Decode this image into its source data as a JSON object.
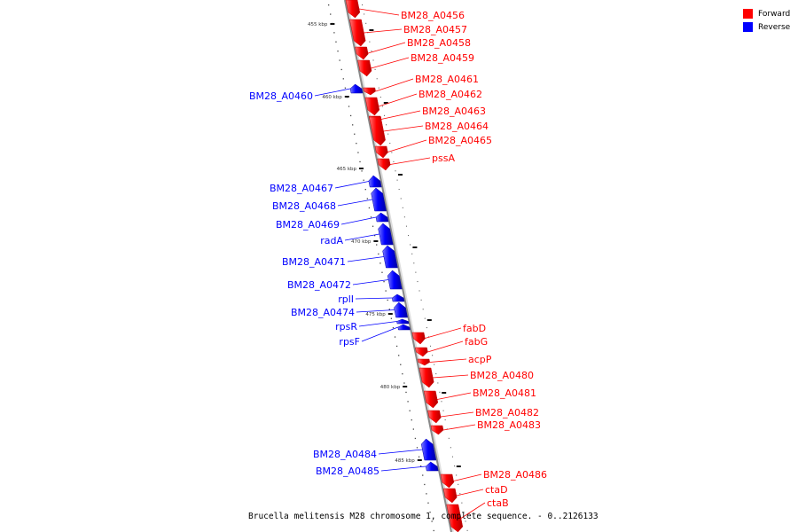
{
  "colors": {
    "forward": "#ff0000",
    "reverse": "#0000ff",
    "backbone": "#999999"
  },
  "legend": [
    {
      "label": "Forward",
      "color": "#ff0000"
    },
    {
      "label": "Reverse",
      "color": "#0000ff"
    }
  ],
  "caption": "Brucella melitensis M28 chromosome 1, complete sequence. - 0..2126133",
  "scale_ticks": [
    "455 kbp",
    "460 kbp",
    "465 kbp",
    "470 kbp",
    "475 kbp",
    "480 kbp",
    "485 kbp"
  ],
  "genes": [
    {
      "name": "BM28_A0456",
      "strand": "forward"
    },
    {
      "name": "BM28_A0457",
      "strand": "forward"
    },
    {
      "name": "BM28_A0458",
      "strand": "forward"
    },
    {
      "name": "BM28_A0459",
      "strand": "forward"
    },
    {
      "name": "BM28_A0460",
      "strand": "reverse"
    },
    {
      "name": "BM28_A0461",
      "strand": "forward"
    },
    {
      "name": "BM28_A0462",
      "strand": "forward"
    },
    {
      "name": "BM28_A0463",
      "strand": "forward"
    },
    {
      "name": "BM28_A0464",
      "strand": "forward"
    },
    {
      "name": "BM28_A0465",
      "strand": "forward"
    },
    {
      "name": "pssA",
      "strand": "forward"
    },
    {
      "name": "BM28_A0467",
      "strand": "reverse"
    },
    {
      "name": "BM28_A0468",
      "strand": "reverse"
    },
    {
      "name": "BM28_A0469",
      "strand": "reverse"
    },
    {
      "name": "radA",
      "strand": "reverse"
    },
    {
      "name": "BM28_A0471",
      "strand": "reverse"
    },
    {
      "name": "BM28_A0472",
      "strand": "reverse"
    },
    {
      "name": "rplI",
      "strand": "reverse"
    },
    {
      "name": "BM28_A0474",
      "strand": "reverse"
    },
    {
      "name": "rpsR",
      "strand": "reverse"
    },
    {
      "name": "rpsF",
      "strand": "reverse"
    },
    {
      "name": "fabD",
      "strand": "forward"
    },
    {
      "name": "fabG",
      "strand": "forward"
    },
    {
      "name": "acpP",
      "strand": "forward"
    },
    {
      "name": "BM28_A0480",
      "strand": "forward"
    },
    {
      "name": "BM28_A0481",
      "strand": "forward"
    },
    {
      "name": "BM28_A0482",
      "strand": "forward"
    },
    {
      "name": "BM28_A0483",
      "strand": "forward"
    },
    {
      "name": "BM28_A0484",
      "strand": "reverse"
    },
    {
      "name": "BM28_A0485",
      "strand": "reverse"
    },
    {
      "name": "BM28_A0486",
      "strand": "forward"
    },
    {
      "name": "ctaD",
      "strand": "forward"
    },
    {
      "name": "ctaB",
      "strand": "forward"
    }
  ]
}
